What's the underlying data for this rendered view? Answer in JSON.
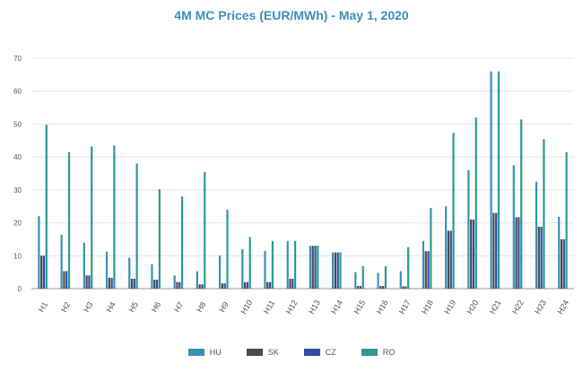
{
  "chart_data": {
    "type": "bar",
    "title": "4M MC Prices (EUR/MWh) - May 1, 2020",
    "xlabel": "",
    "ylabel": "",
    "ylim": [
      0,
      70
    ],
    "yticks": [
      0,
      10,
      20,
      30,
      40,
      50,
      60,
      70
    ],
    "grid": true,
    "legend_position": "bottom",
    "categories": [
      "H1",
      "H2",
      "H3",
      "H4",
      "H5",
      "H6",
      "H7",
      "H8",
      "H9",
      "H10",
      "H11",
      "H12",
      "H13",
      "H14",
      "H15",
      "H16",
      "H17",
      "H18",
      "H19",
      "H20",
      "H21",
      "H22",
      "H23",
      "H24"
    ],
    "series": [
      {
        "name": "HU",
        "color": "#3a8fb7",
        "values": [
          22.0,
          16.4,
          14.0,
          11.2,
          9.4,
          7.4,
          4.0,
          5.3,
          10.0,
          12.0,
          11.5,
          14.5,
          13.0,
          11.0,
          5.0,
          4.8,
          5.3,
          14.5,
          25.0,
          36.0,
          66.0,
          37.5,
          32.5,
          21.8
        ]
      },
      {
        "name": "SK",
        "color": "#4a4a4a",
        "values": [
          10.0,
          5.3,
          4.0,
          3.3,
          3.0,
          2.7,
          2.0,
          1.3,
          1.6,
          2.0,
          2.0,
          3.0,
          13.0,
          11.0,
          0.8,
          0.8,
          0.7,
          11.4,
          17.6,
          21.0,
          23.0,
          21.7,
          18.8,
          15.0
        ]
      },
      {
        "name": "CZ",
        "color": "#2e4fa0",
        "values": [
          10.0,
          5.3,
          4.0,
          3.3,
          3.0,
          2.7,
          2.0,
          1.3,
          1.6,
          2.0,
          2.0,
          3.0,
          13.0,
          11.0,
          0.8,
          0.8,
          0.7,
          11.4,
          17.6,
          21.0,
          23.0,
          21.7,
          18.8,
          15.0
        ]
      },
      {
        "name": "RO",
        "color": "#2d9a90",
        "values": [
          49.8,
          41.5,
          43.2,
          43.5,
          38.0,
          30.2,
          28.0,
          35.4,
          24.0,
          15.7,
          14.5,
          14.5,
          13.0,
          11.0,
          6.8,
          6.8,
          12.6,
          24.5,
          47.3,
          52.0,
          66.0,
          51.4,
          45.4,
          41.5
        ]
      }
    ]
  }
}
